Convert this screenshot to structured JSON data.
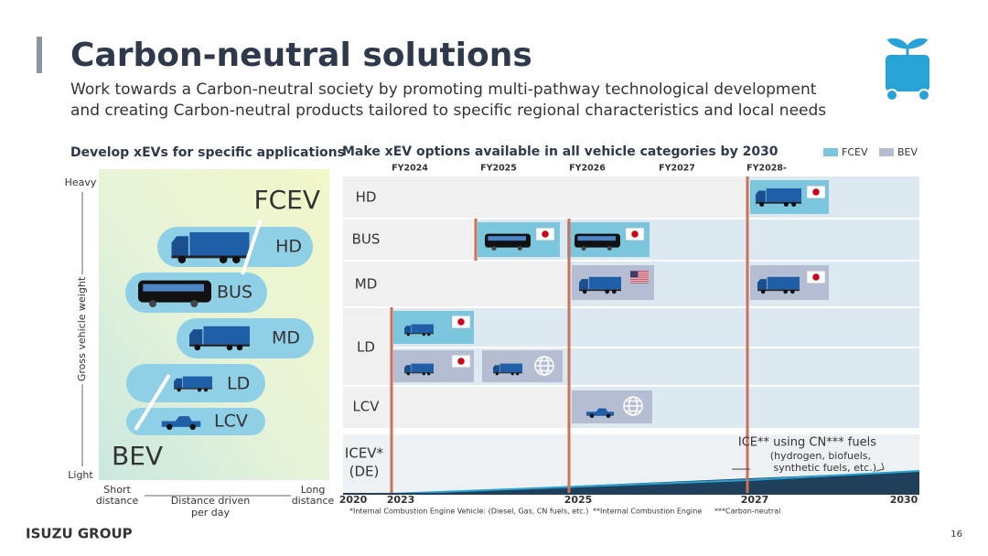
{
  "header": {
    "title": "Carbon-neutral solutions",
    "subtitle_lines": [
      "Work towards a Carbon-neutral society by promoting multi-pathway technological development",
      "and creating Carbon-neutral products tailored to specific regional characteristics and local needs"
    ]
  },
  "left_panel": {
    "title": "Develop xEVs for specific applications",
    "y_axis": {
      "label": "Gross vehicle weight",
      "top": "Heavy",
      "bottom": "Light"
    },
    "x_axis": {
      "label_lines": [
        "Distance driven",
        "per day"
      ],
      "left_lines": [
        "Short",
        "distance"
      ],
      "right_lines": [
        "Long",
        "distance"
      ]
    },
    "corner_top": "FCEV",
    "corner_bottom": "BEV",
    "vehicles": [
      "HD",
      "BUS",
      "MD",
      "LD",
      "LCV"
    ]
  },
  "right_panel": {
    "title": "Make xEV options available in all vehicle categories by 2030",
    "legend": [
      "FCEV",
      "BEV"
    ],
    "fiscal_years": [
      "FY2024",
      "FY2025",
      "FY2026",
      "FY2027",
      "FY2028-"
    ],
    "rows": [
      "HD",
      "BUS",
      "MD",
      "LD",
      "LCV"
    ],
    "icev_lines": [
      "ICEV*",
      "(DE)"
    ],
    "icev_note_lines": [
      "ICE** using CN*** fuels",
      "(hydrogen, biofuels,",
      "synthetic fuels, etc.)"
    ],
    "timeline": [
      "2020",
      "2023",
      "2025",
      "2027",
      "2030"
    ],
    "footnotes": [
      "*Internal Combustion Engine Vehicle: (Diesel, Gas, CN fuels, etc.)",
      "**Internal Combustion Engine",
      "***Carbon-neutral"
    ]
  },
  "footer": {
    "brand": "ISUZU GROUP",
    "page": "16"
  }
}
